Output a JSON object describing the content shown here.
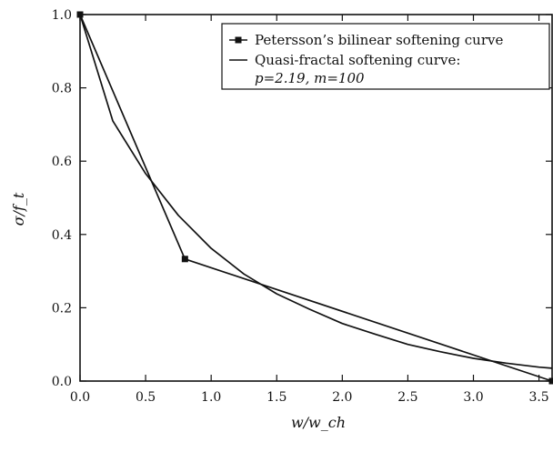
{
  "chart_data": {
    "type": "line",
    "title": "",
    "xlabel": "w/w_ch",
    "ylabel": "σ/f_t",
    "xlim": [
      0.0,
      3.6
    ],
    "ylim": [
      0.0,
      1.0
    ],
    "x_ticks": [
      0.0,
      0.5,
      1.0,
      1.5,
      2.0,
      2.5,
      3.0,
      3.5
    ],
    "x_tick_labels": [
      "0.0",
      "0.5",
      "1.0",
      "1.5",
      "2.0",
      "2.5",
      "3.0",
      "3.5"
    ],
    "y_ticks": [
      0.0,
      0.2,
      0.4,
      0.6,
      0.8,
      1.0
    ],
    "y_tick_labels": [
      "0.0",
      "0.2",
      "0.4",
      "0.6",
      "0.8",
      "1.0"
    ],
    "grid": false,
    "legend_position": "top-right",
    "legend": {
      "entry1": "Petersson’s bilinear softening curve",
      "entry2_line1": "Quasi-fractal softening curve:",
      "entry2_line2": "p=2.19, m=100"
    },
    "series": [
      {
        "name": "Petersson’s bilinear softening curve",
        "marker": "square",
        "x": [
          0.0,
          0.8,
          3.6
        ],
        "y": [
          1.0,
          0.333,
          0.0
        ]
      },
      {
        "name": "Quasi-fractal softening curve: p=2.19, m=100",
        "marker": "none",
        "x": [
          0.0,
          0.25,
          0.5,
          0.75,
          1.0,
          1.25,
          1.5,
          1.75,
          2.0,
          2.25,
          2.5,
          2.75,
          3.0,
          3.25,
          3.5,
          3.6
        ],
        "y": [
          1.0,
          0.71,
          0.566,
          0.452,
          0.362,
          0.292,
          0.238,
          0.196,
          0.157,
          0.128,
          0.1,
          0.08,
          0.062,
          0.049,
          0.038,
          0.035
        ]
      }
    ]
  }
}
